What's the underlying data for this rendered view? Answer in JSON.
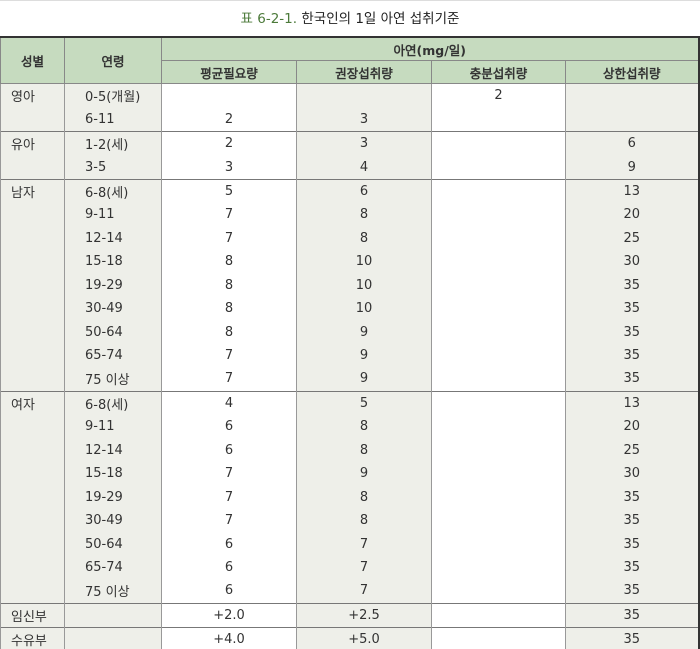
{
  "title": {
    "prefix": "표 6-2-1.",
    "text": "한국인의 1일 아연 섭취기준"
  },
  "headers": {
    "sex": "성별",
    "age": "연령",
    "group": "아연(mg/일)",
    "cols": [
      "평균필요량",
      "권장섭취량",
      "충분섭취량",
      "상한섭취량"
    ]
  },
  "rows": [
    [
      "영아",
      "0-5(개월)",
      "",
      "",
      "2",
      ""
    ],
    [
      "",
      "6-11",
      "2",
      "3",
      "",
      ""
    ],
    [
      "유아",
      "1-2(세)",
      "2",
      "3",
      "",
      "6"
    ],
    [
      "",
      "3-5",
      "3",
      "4",
      "",
      "9"
    ],
    [
      "남자",
      "6-8(세)",
      "5",
      "6",
      "",
      "13"
    ],
    [
      "",
      "9-11",
      "7",
      "8",
      "",
      "20"
    ],
    [
      "",
      "12-14",
      "7",
      "8",
      "",
      "25"
    ],
    [
      "",
      "15-18",
      "8",
      "10",
      "",
      "30"
    ],
    [
      "",
      "19-29",
      "8",
      "10",
      "",
      "35"
    ],
    [
      "",
      "30-49",
      "8",
      "10",
      "",
      "35"
    ],
    [
      "",
      "50-64",
      "8",
      "9",
      "",
      "35"
    ],
    [
      "",
      "65-74",
      "7",
      "9",
      "",
      "35"
    ],
    [
      "",
      "75 이상",
      "7",
      "9",
      "",
      "35"
    ],
    [
      "여자",
      "6-8(세)",
      "4",
      "5",
      "",
      "13"
    ],
    [
      "",
      "9-11",
      "6",
      "8",
      "",
      "20"
    ],
    [
      "",
      "12-14",
      "6",
      "8",
      "",
      "25"
    ],
    [
      "",
      "15-18",
      "7",
      "9",
      "",
      "30"
    ],
    [
      "",
      "19-29",
      "7",
      "8",
      "",
      "35"
    ],
    [
      "",
      "30-49",
      "7",
      "8",
      "",
      "35"
    ],
    [
      "",
      "50-64",
      "6",
      "7",
      "",
      "35"
    ],
    [
      "",
      "65-74",
      "6",
      "7",
      "",
      "35"
    ],
    [
      "",
      "75 이상",
      "6",
      "7",
      "",
      "35"
    ],
    [
      "임신부",
      "",
      "+2.0",
      "+2.5",
      "",
      "35"
    ],
    [
      "수유부",
      "",
      "+4.0",
      "+5.0",
      "",
      "35"
    ]
  ]
}
